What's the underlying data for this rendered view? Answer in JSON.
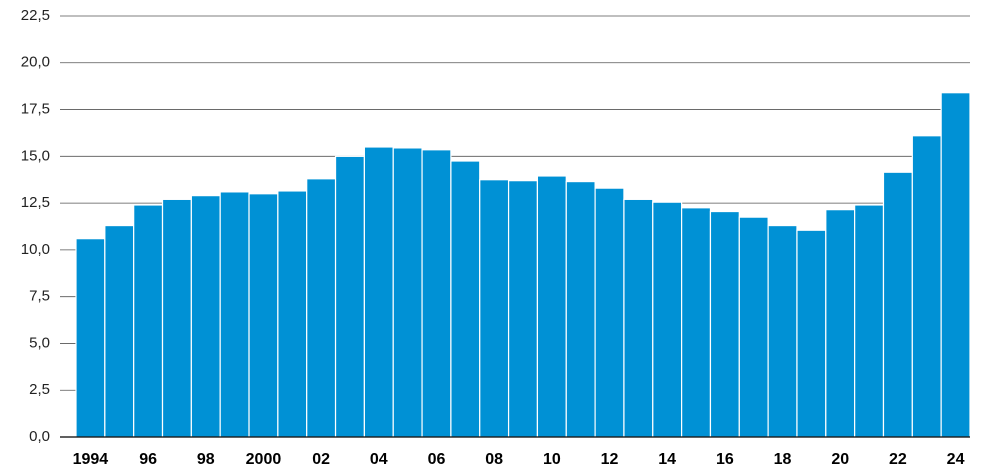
{
  "chart_data": {
    "type": "bar",
    "categories": [
      "1994",
      null,
      "96",
      null,
      "98",
      null,
      "2000",
      null,
      "02",
      null,
      "04",
      null,
      "06",
      null,
      "08",
      null,
      "10",
      null,
      "12",
      null,
      "14",
      null,
      "16",
      null,
      "18",
      null,
      "20",
      null,
      "22",
      null,
      "24"
    ],
    "values": [
      10.6,
      11.3,
      12.4,
      12.7,
      12.9,
      13.1,
      13.0,
      13.15,
      13.8,
      15.0,
      15.5,
      15.45,
      15.35,
      14.75,
      13.75,
      13.7,
      13.95,
      13.65,
      13.3,
      12.7,
      12.55,
      12.25,
      12.05,
      11.75,
      11.3,
      11.05,
      12.15,
      12.4,
      14.15,
      16.1,
      18.4
    ],
    "color": "#0091d5",
    "ylim": [
      0,
      22.5
    ],
    "yticks": [
      {
        "value": 0,
        "label": "0,0"
      },
      {
        "value": 2.5,
        "label": "2,5"
      },
      {
        "value": 5,
        "label": "5,0"
      },
      {
        "value": 7.5,
        "label": "7,5"
      },
      {
        "value": 10,
        "label": "10,0"
      },
      {
        "value": 12.5,
        "label": "12,5"
      },
      {
        "value": 15,
        "label": "15,0"
      },
      {
        "value": 17.5,
        "label": "17,5"
      },
      {
        "value": 20,
        "label": "20,0"
      },
      {
        "value": 22.5,
        "label": "22,5"
      }
    ],
    "grid": true
  }
}
